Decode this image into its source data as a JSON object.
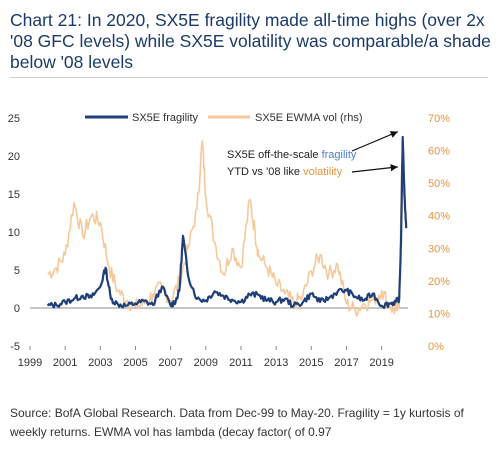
{
  "title": "Chart 21: In 2020, SX5E fragility made all-time highs (over 2x '08 GFC levels) while SX5E volatility was comparable/a shade below '08 levels",
  "source": "Source: BofA Global Research. Data from Dec-99 to May-20. Fragility = 1y kurtosis of weekly returns. EWMA vol has lambda (decay factor( of 0.97",
  "colors": {
    "fragility": "#1f3f7a",
    "vol": "#f5c99a",
    "vol_axis": "#e5963e",
    "annotation_fragility": "#4a7fd1",
    "annotation_vol": "#e5963e"
  },
  "chart_data": {
    "type": "line",
    "legend_position": "top",
    "grid": false,
    "x_ticks": [
      "1999",
      "2001",
      "2003",
      "2005",
      "2007",
      "2009",
      "2011",
      "2013",
      "2015",
      "2017",
      "2019"
    ],
    "y_ticks": [
      "-5",
      "0",
      "5",
      "10",
      "15",
      "20",
      "25"
    ],
    "y2_ticks": [
      "0%",
      "10%",
      "20%",
      "30%",
      "40%",
      "50%",
      "60%",
      "70%"
    ],
    "ylim": [
      -5,
      25
    ],
    "y2lim": [
      0,
      70
    ],
    "series": [
      {
        "name": "SX5E fragility",
        "axis": "left",
        "x": [
          2000.0,
          2000.5,
          2001.0,
          2001.5,
          2002.0,
          2002.5,
          2003.0,
          2003.3,
          2003.6,
          2004.0,
          2004.5,
          2005.0,
          2005.5,
          2006.0,
          2006.5,
          2007.0,
          2007.3,
          2007.5,
          2007.7,
          2008.0,
          2008.5,
          2009.0,
          2009.5,
          2010.0,
          2010.5,
          2011.0,
          2011.5,
          2012.0,
          2012.5,
          2013.0,
          2013.5,
          2014.0,
          2014.5,
          2015.0,
          2015.5,
          2016.0,
          2016.5,
          2017.0,
          2017.5,
          2018.0,
          2018.5,
          2019.0,
          2019.5,
          2019.8,
          2020.0,
          2020.1,
          2020.2,
          2020.3,
          2020.4
        ],
        "y": [
          0.3,
          0.4,
          0.8,
          1.2,
          1.6,
          1.4,
          2.8,
          5.3,
          1.2,
          0.5,
          0.3,
          0.6,
          0.9,
          0.4,
          2.8,
          0.3,
          1.0,
          2.3,
          9.5,
          4.2,
          1.2,
          1.0,
          2.2,
          1.6,
          1.1,
          0.8,
          1.8,
          1.7,
          1.0,
          0.8,
          1.2,
          0.3,
          0.7,
          1.9,
          0.8,
          1.3,
          2.2,
          2.3,
          1.5,
          1.0,
          1.9,
          0.3,
          0.6,
          0.8,
          1.2,
          8.5,
          22.5,
          15.0,
          10.5
        ]
      },
      {
        "name": "SX5E EWMA vol (rhs)",
        "axis": "right",
        "x": [
          2000.0,
          2000.5,
          2001.0,
          2001.5,
          2002.0,
          2002.5,
          2003.0,
          2003.5,
          2004.0,
          2004.5,
          2005.0,
          2005.5,
          2006.0,
          2006.5,
          2007.0,
          2007.5,
          2008.0,
          2008.5,
          2008.8,
          2009.0,
          2009.5,
          2010.0,
          2010.5,
          2011.0,
          2011.5,
          2011.8,
          2012.0,
          2012.5,
          2013.0,
          2013.5,
          2014.0,
          2014.5,
          2015.0,
          2015.5,
          2016.0,
          2016.5,
          2017.0,
          2017.5,
          2018.0,
          2018.5,
          2019.0,
          2019.5,
          2019.8,
          2020.0,
          2020.15,
          2020.25,
          2020.4
        ],
        "y": [
          22.0,
          24.0,
          28.0,
          44.0,
          34.0,
          40.0,
          38.0,
          24.0,
          17.0,
          14.0,
          12.0,
          13.0,
          16.0,
          18.0,
          14.0,
          20.0,
          30.0,
          42.0,
          63.0,
          46.0,
          32.0,
          22.0,
          30.0,
          24.0,
          45.0,
          35.0,
          28.0,
          24.0,
          19.0,
          16.0,
          13.0,
          15.0,
          23.0,
          28.0,
          22.0,
          25.0,
          13.0,
          11.0,
          13.0,
          14.0,
          17.0,
          12.0,
          11.0,
          12.0,
          55.0,
          46.0,
          37.0
        ]
      }
    ],
    "annotation": {
      "line1": "SX5E off-the-scale",
      "line1_highlight": "fragility",
      "line2": "YTD vs '08 like",
      "line2_highlight": "volatility"
    }
  }
}
